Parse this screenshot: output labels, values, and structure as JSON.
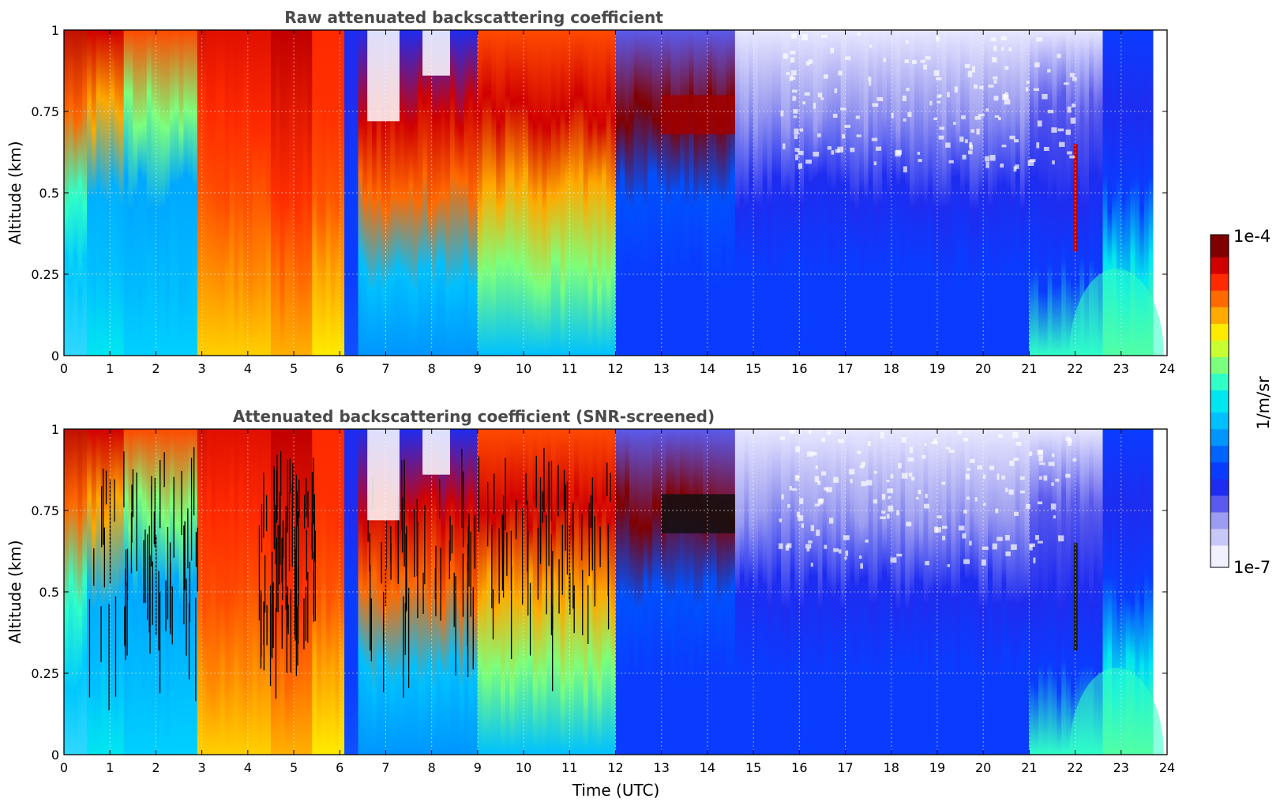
{
  "chart_data": [
    {
      "type": "heatmap",
      "title": "Raw attenuated backscattering coefficient",
      "xlabel": "",
      "ylabel": "Altitude (km)",
      "xlim": [
        0,
        24
      ],
      "ylim": [
        0,
        1
      ],
      "x_ticks": [
        "0",
        "1",
        "2",
        "3",
        "4",
        "5",
        "6",
        "7",
        "8",
        "9",
        "10",
        "11",
        "12",
        "13",
        "14",
        "15",
        "16",
        "17",
        "18",
        "19",
        "20",
        "21",
        "22",
        "23",
        "24"
      ],
      "y_ticks": [
        "0",
        "0.25",
        "0.5",
        "0.75",
        "1"
      ],
      "grid": true,
      "colormap": "jet",
      "color_scale": "log",
      "color_range": [
        "1e-7",
        "1e-4"
      ],
      "snr_screened": false
    },
    {
      "type": "heatmap",
      "title": "Attenuated backscattering coefficient (SNR-screened)",
      "xlabel": "Time (UTC)",
      "ylabel": "Altitude (km)",
      "xlim": [
        0,
        24
      ],
      "ylim": [
        0,
        1
      ],
      "x_ticks": [
        "0",
        "1",
        "2",
        "3",
        "4",
        "5",
        "6",
        "7",
        "8",
        "9",
        "10",
        "11",
        "12",
        "13",
        "14",
        "15",
        "16",
        "17",
        "18",
        "19",
        "20",
        "21",
        "22",
        "23",
        "24"
      ],
      "y_ticks": [
        "0",
        "0.25",
        "0.5",
        "0.75",
        "1"
      ],
      "grid": true,
      "colormap": "jet",
      "color_scale": "log",
      "color_range": [
        "1e-7",
        "1e-4"
      ],
      "snr_screened": true
    }
  ],
  "colorbar": {
    "label": "1/m/sr",
    "max_label": "1e-4",
    "min_label": "1e-7",
    "colors": [
      "#f0f0ff",
      "#c8c8f8",
      "#9c9cf0",
      "#5a5aec",
      "#1e2cf0",
      "#0a3cff",
      "#0064ff",
      "#0096ff",
      "#00c0ff",
      "#00e6f0",
      "#30ffc8",
      "#7cff7c",
      "#c8ff30",
      "#ffeb00",
      "#ffaa00",
      "#ff6a00",
      "#ff2a00",
      "#d00000",
      "#800000"
    ]
  }
}
